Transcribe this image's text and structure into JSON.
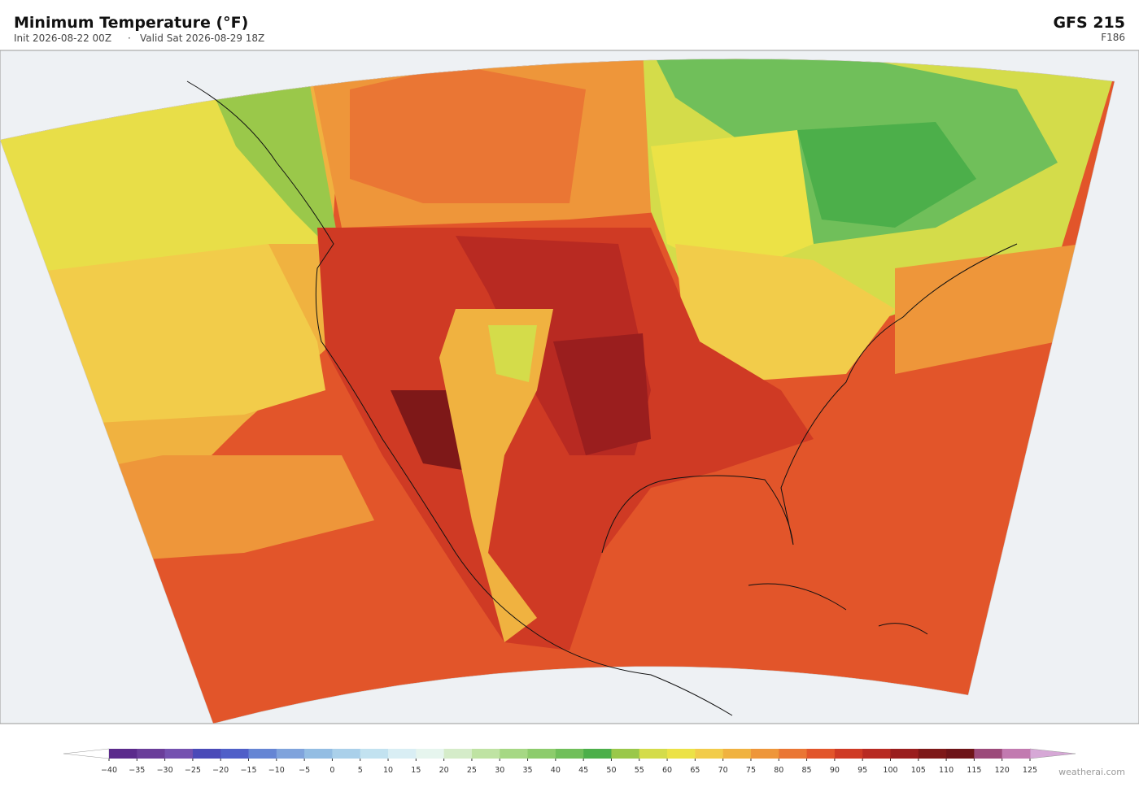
{
  "header": {
    "title": "Minimum Temperature  (°F)",
    "init": "Init 2026-08-22 00Z",
    "separator": "·",
    "valid": "Valid Sat 2026-08-29 18Z",
    "model": "GFS  215",
    "forecast_hour": "F186"
  },
  "colorbar": {
    "ticks": [
      {
        "value": -40,
        "label": "−40"
      },
      {
        "value": -35,
        "label": "−35"
      },
      {
        "value": -30,
        "label": "−30"
      },
      {
        "value": -25,
        "label": "−25"
      },
      {
        "value": -20,
        "label": "−20"
      },
      {
        "value": -15,
        "label": "−15"
      },
      {
        "value": -10,
        "label": "−10"
      },
      {
        "value": -5,
        "label": "−5"
      },
      0,
      5,
      10,
      15,
      20,
      25,
      30,
      35,
      40,
      45,
      50,
      55,
      60,
      65,
      70,
      75,
      80,
      85,
      90,
      95,
      100,
      105,
      110,
      115,
      120,
      125
    ],
    "colors": [
      "#5b2a8c",
      "#6a3d9a",
      "#7451b0",
      "#4a4ab8",
      "#4f5fc8",
      "#6585d4",
      "#7fa3dc",
      "#93bde3",
      "#aad0ea",
      "#c2e2f0",
      "#d9eef4",
      "#e6f5ee",
      "#d5ecc9",
      "#bfe3a3",
      "#a6d884",
      "#8dcc6c",
      "#70bf5a",
      "#4caf4a",
      "#9ac84a",
      "#d4dc4a",
      "#ece246",
      "#f2cc4a",
      "#f0b240",
      "#ee963a",
      "#ea7634",
      "#e2552a",
      "#cf3a24",
      "#b82a22",
      "#9a1e1e",
      "#7e1818",
      "#6e1418",
      "#9c4a7a",
      "#c27ab0",
      "#d9a3cc"
    ],
    "under_color": "#ffffff",
    "over_color": "#d6a8d6"
  },
  "credit": "weatherai.com"
}
